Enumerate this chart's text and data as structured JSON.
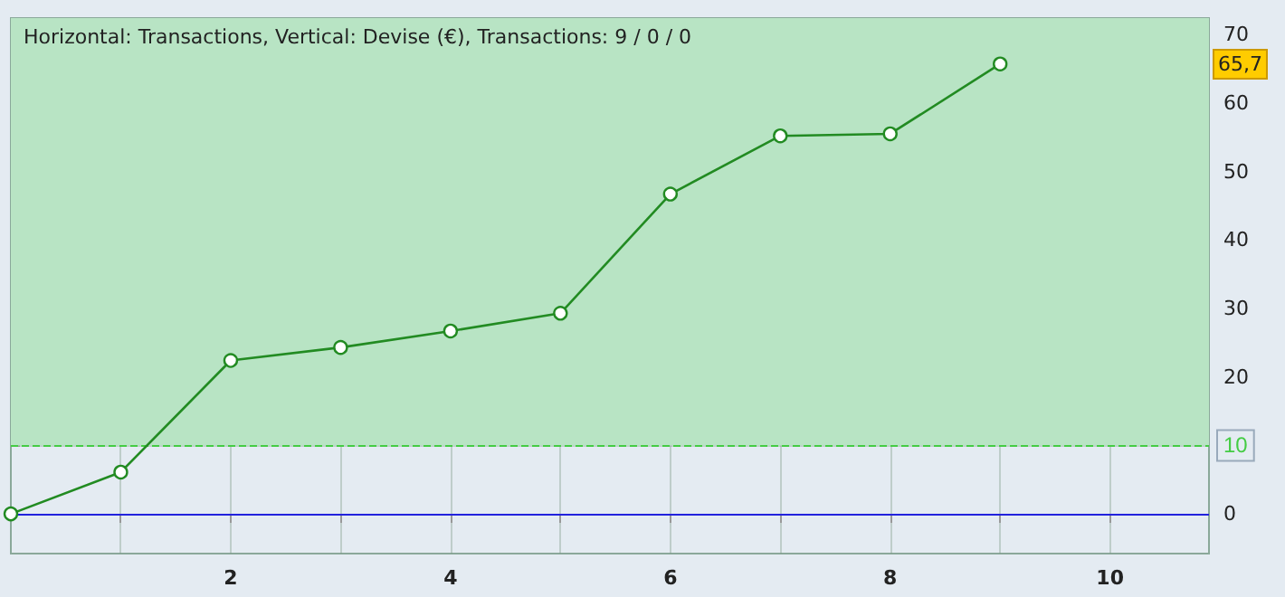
{
  "chart_data": {
    "type": "line",
    "title": "Horizontal: Transactions, Vertical: Devise (€), Transactions: 9 / 0 / 0",
    "x": [
      0,
      1,
      2,
      3,
      4,
      5,
      6,
      7,
      8,
      9
    ],
    "series": [
      {
        "color": "#228b22",
        "values": [
          0,
          6.1,
          22.4,
          24.3,
          26.7,
          29.3,
          46.7,
          55.2,
          55.5,
          65.7
        ]
      }
    ],
    "xlim": [
      0,
      10.9
    ],
    "xticks": [
      {
        "value": 1,
        "label": null
      },
      2,
      {
        "value": 3,
        "label": null
      },
      4,
      {
        "value": 5,
        "label": null
      },
      6,
      {
        "value": 7,
        "label": null
      },
      8,
      {
        "value": 9,
        "label": null
      },
      10
    ],
    "ylim": [
      -5.8,
      72.4
    ],
    "yticks": [
      0,
      10,
      20,
      30,
      40,
      50,
      60,
      70
    ],
    "bands": [
      {
        "axis": "y",
        "from": 10,
        "to": 72.4,
        "color": "#b8e4c4"
      }
    ],
    "ref_lines": [
      {
        "axis": "y",
        "value": 10,
        "label": "10",
        "color": "#44cc44",
        "line_style": "dashed"
      },
      {
        "axis": "y",
        "value": 0,
        "color": "#2222dd",
        "line_style": "solid"
      }
    ],
    "annotations": [
      "65,7"
    ],
    "grid": true,
    "marker": "circle",
    "line_style": "solid"
  }
}
